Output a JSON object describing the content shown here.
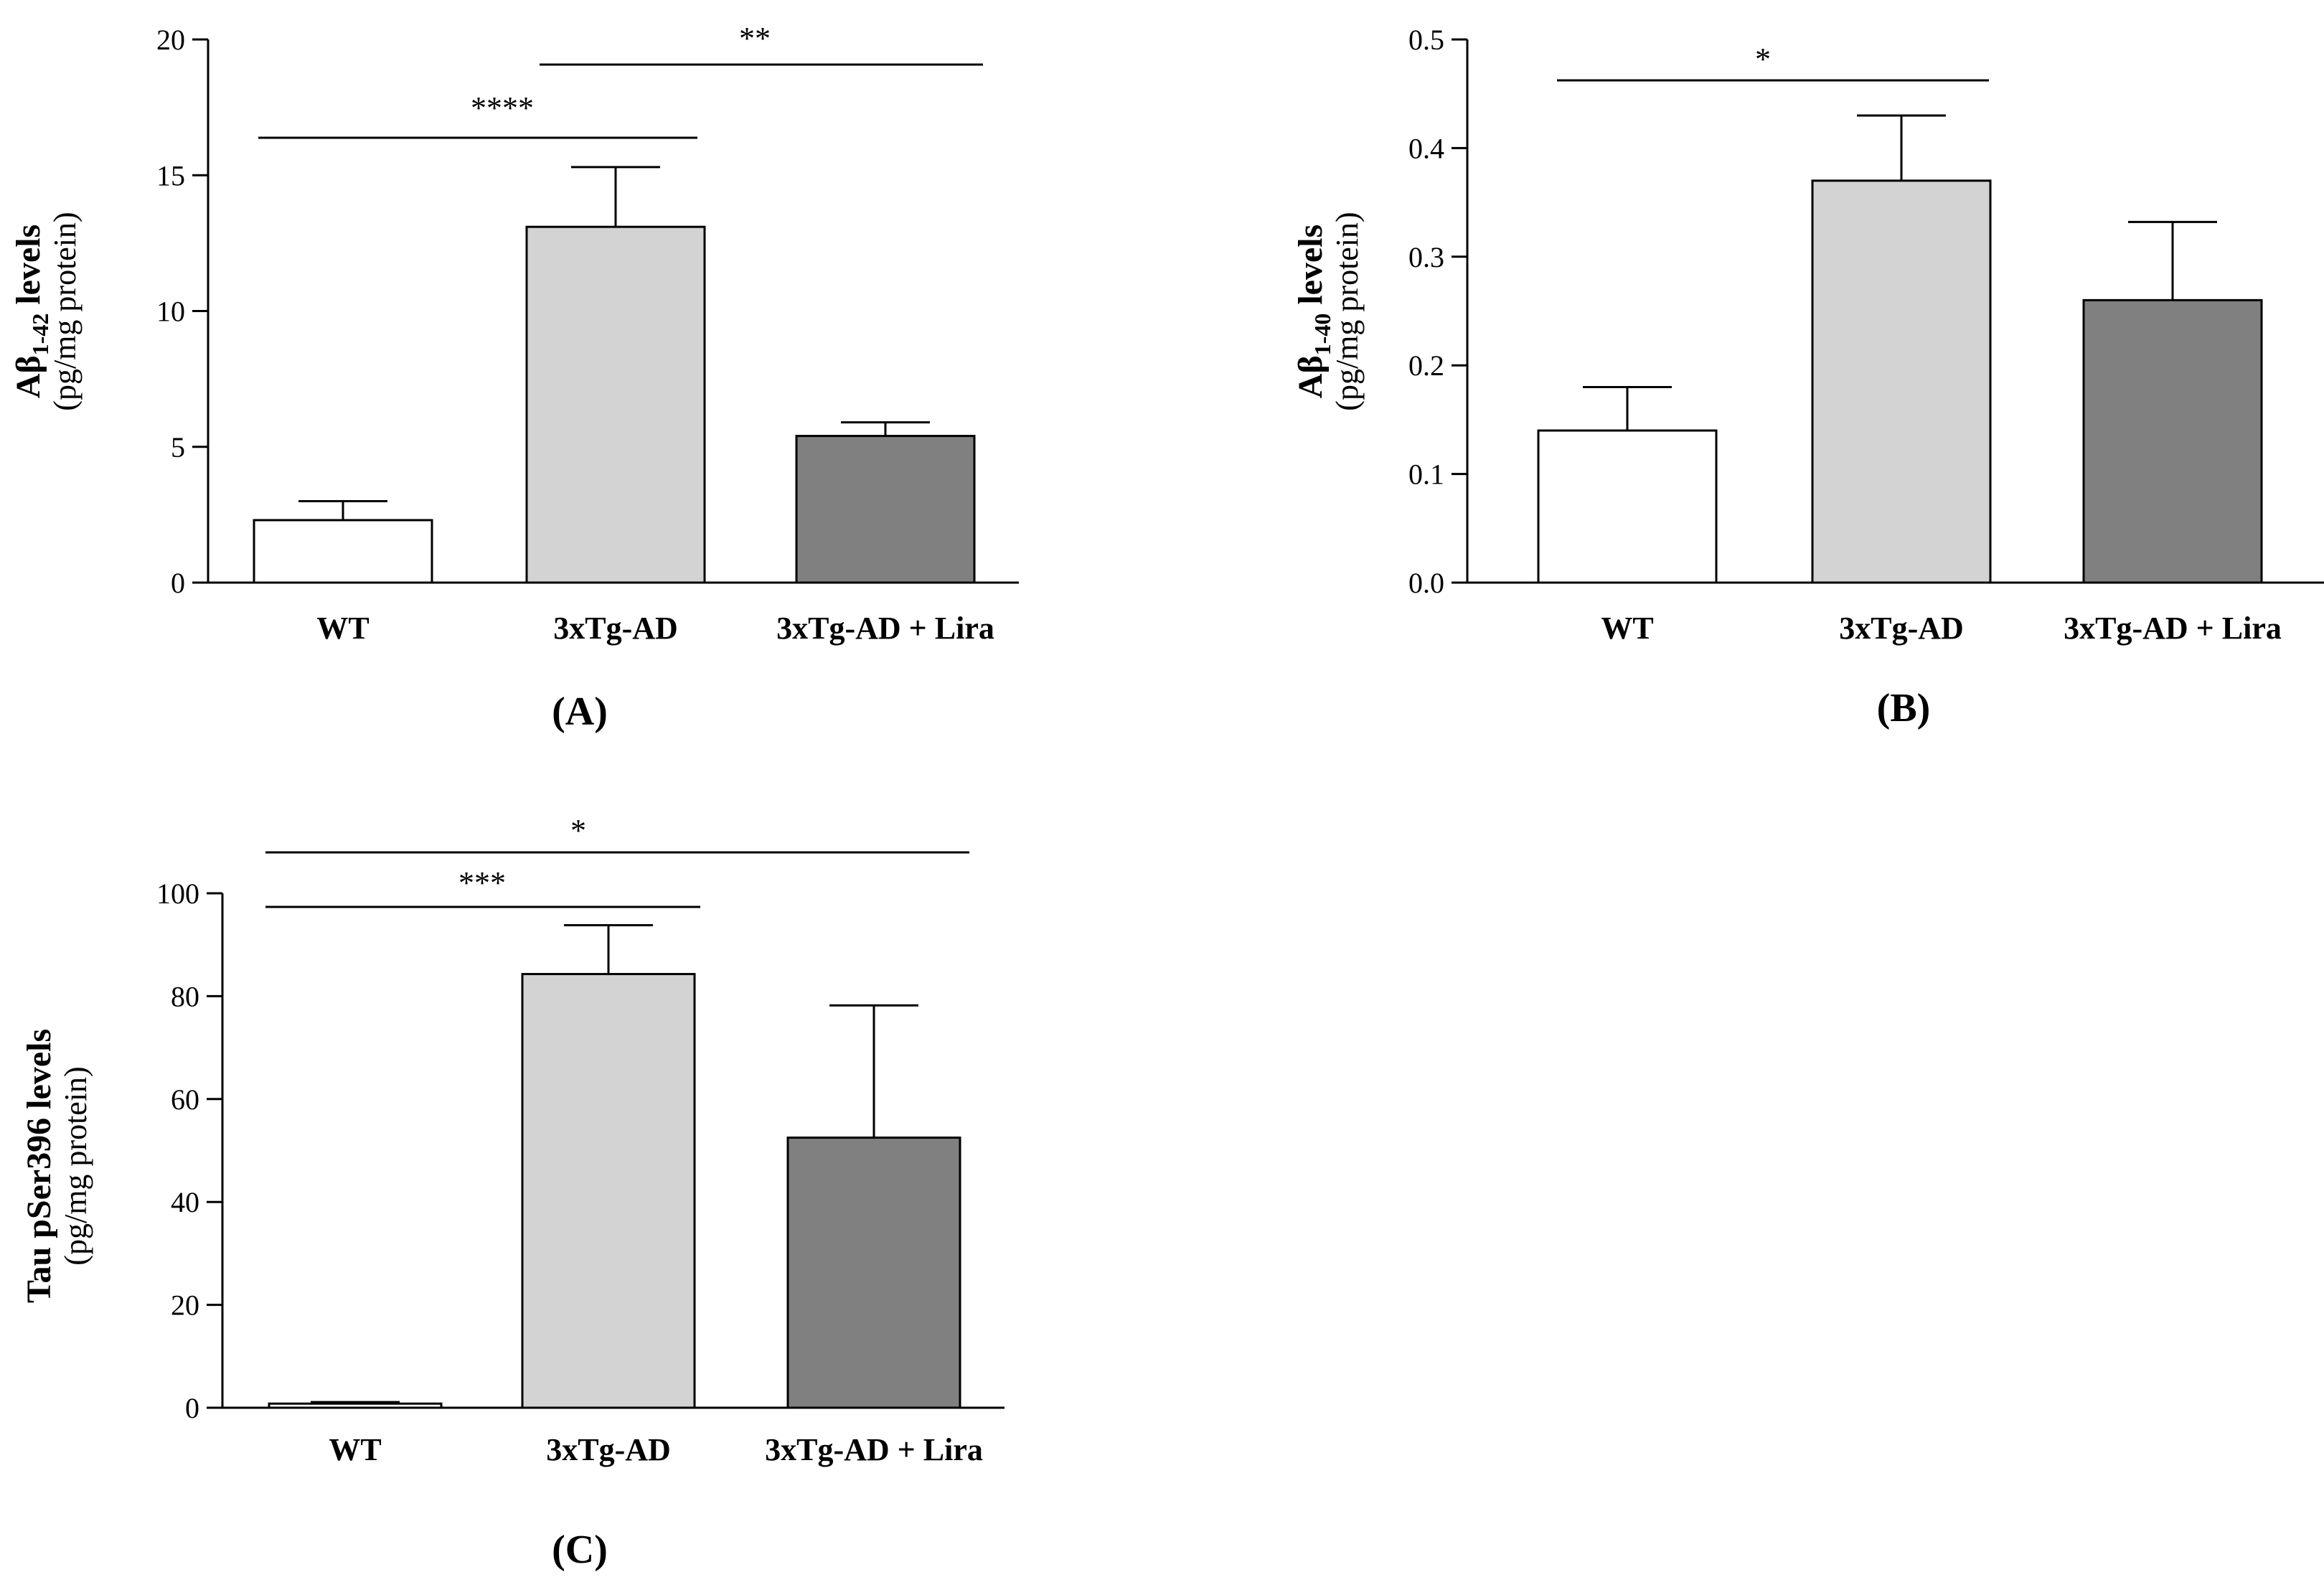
{
  "chart_data": [
    {
      "type": "bar",
      "panel_label": "(A)",
      "ylabel_main": "Aβ",
      "ylabel_sub": "1-42",
      "ylabel_tail": " levels",
      "ylabel_unit": "(pg/mg protein)",
      "categories": [
        "WT",
        "3xTg-AD",
        "3xTg-AD + Lira"
      ],
      "values": [
        2.3,
        13.1,
        5.4
      ],
      "errors": [
        0.7,
        2.2,
        0.5
      ],
      "colors": [
        "#ffffff",
        "#d3d3d3",
        "#808080"
      ],
      "ylim": [
        0,
        20
      ],
      "yticks": [
        "0",
        "5",
        "10",
        "15",
        "20"
      ],
      "significance": [
        {
          "from": 0,
          "to": 1,
          "label": "****"
        },
        {
          "from": 1,
          "to": 2,
          "label": "**"
        }
      ]
    },
    {
      "type": "bar",
      "panel_label": "(B)",
      "ylabel_main": "Aβ",
      "ylabel_sub": "1-40",
      "ylabel_tail": " levels",
      "ylabel_unit": "(pg/mg protein)",
      "categories": [
        "WT",
        "3xTg-AD",
        "3xTg-AD + Lira"
      ],
      "values": [
        0.14,
        0.37,
        0.26
      ],
      "errors": [
        0.04,
        0.06,
        0.072
      ],
      "colors": [
        "#ffffff",
        "#d3d3d3",
        "#808080"
      ],
      "ylim": [
        0,
        0.5
      ],
      "yticks": [
        "0.0",
        "0.1",
        "0.2",
        "0.3",
        "0.4",
        "0.5"
      ],
      "significance": [
        {
          "from": 0,
          "to": 1,
          "label": "*"
        }
      ]
    },
    {
      "type": "bar",
      "panel_label": "(C)",
      "ylabel_main": "Tau pSer396 levels",
      "ylabel_sub": "",
      "ylabel_tail": "",
      "ylabel_unit": "(pg/mg protein)",
      "categories": [
        "WT",
        "3xTg-AD",
        "3xTg-AD + Lira"
      ],
      "values": [
        0.8,
        84.3,
        52.5
      ],
      "errors": [
        0.3,
        9.5,
        25.7
      ],
      "colors": [
        "#ffffff",
        "#d3d3d3",
        "#808080"
      ],
      "ylim": [
        0,
        100
      ],
      "yticks": [
        "0",
        "20",
        "40",
        "60",
        "80",
        "100"
      ],
      "significance": [
        {
          "from": 0,
          "to": 1,
          "label": "***"
        },
        {
          "from": 0,
          "to": 2,
          "label": "*"
        }
      ]
    }
  ]
}
